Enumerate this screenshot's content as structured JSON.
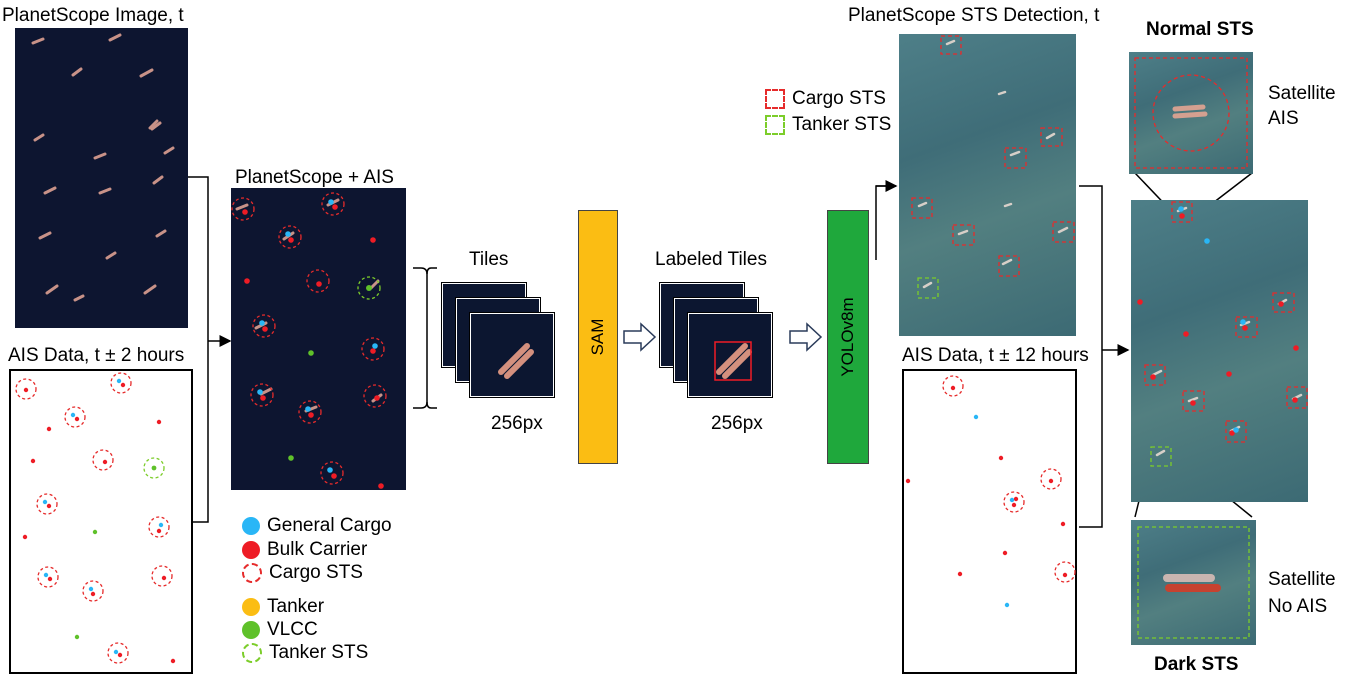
{
  "titles": {
    "planet_image": "PlanetScope Image, t",
    "ais_data_2h": "AIS Data, t ± 2 hours",
    "planet_ais": "PlanetScope + AIS",
    "tiles": "Tiles",
    "tiles_size": "256px",
    "labeled_tiles": "Labeled Tiles",
    "labeled_size": "256px",
    "sts_detection": "PlanetScope STS Detection, t",
    "ais_data_12h": "AIS Data, t ± 12 hours",
    "normal_sts": "Normal STS",
    "dark_sts": "Dark STS",
    "satellite_ais_1": "Satellite",
    "satellite_ais_2": "AIS",
    "satellite_noais_1": "Satellite",
    "satellite_noais_2": "No AIS"
  },
  "models": {
    "sam": "SAM",
    "yolo": "YOLOv8m"
  },
  "legend": {
    "general_cargo": "General Cargo",
    "bulk_carrier": "Bulk Carrier",
    "cargo_sts": "Cargo STS",
    "tanker": "Tanker",
    "vlcc": "VLCC",
    "tanker_sts": "Tanker STS"
  },
  "detect_legend": {
    "cargo_sts": "Cargo STS",
    "tanker_sts": "Tanker STS"
  },
  "colors": {
    "general_cargo": "#29b6f6",
    "bulk_carrier": "#ee1c25",
    "tanker": "#fbbd13",
    "vlcc": "#5fc12a",
    "sts_cargo": "#e62b2b",
    "sts_tanker": "#7ccd2a",
    "sam_bar": "#fbbd13",
    "yolo_bar": "#1fa83c"
  }
}
